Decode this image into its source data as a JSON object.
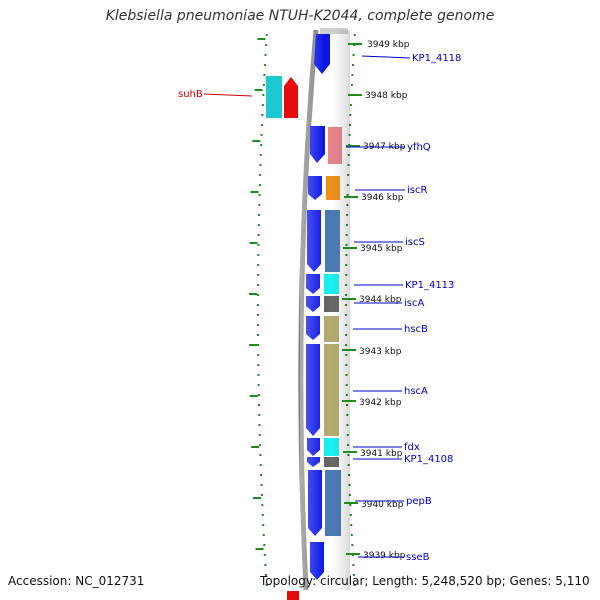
{
  "title": "Klebsiella pneumoniae NTUH-K2044, complete genome",
  "footer": {
    "accession": "Accession: NC_012731",
    "topology": "Topology: circular; Length: 5,248,520 bp; Genes: 5,110"
  },
  "kbp_labels": [
    "3949 kbp",
    "3948 kbp",
    "3947 kbp",
    "3946 kbp",
    "3945 kbp",
    "3944 kbp",
    "3943 kbp",
    "3942 kbp",
    "3941 kbp",
    "3940 kbp",
    "3939 kbp"
  ],
  "genes": [
    {
      "name": "KP1_4118",
      "color": "#0000cc"
    },
    {
      "name": "suhB",
      "color": "#cc0000"
    },
    {
      "name": "yfhQ",
      "color": "#0000cc"
    },
    {
      "name": "iscR",
      "color": "#0000cc"
    },
    {
      "name": "iscS",
      "color": "#0000cc"
    },
    {
      "name": "KP1_4113",
      "color": "#0000cc"
    },
    {
      "name": "iscA",
      "color": "#0000cc"
    },
    {
      "name": "hscB",
      "color": "#0000cc"
    },
    {
      "name": "hscA",
      "color": "#0000cc"
    },
    {
      "name": "fdx",
      "color": "#0000cc"
    },
    {
      "name": "KP1_4108",
      "color": "#0000cc"
    },
    {
      "name": "pepB",
      "color": "#0000cc"
    },
    {
      "name": "sseB",
      "color": "#0000cc"
    }
  ],
  "colors": {
    "cds_blue": "#0a14e6",
    "suhB_cyan": "#1ec8d2",
    "suhB_red": "#e60a0a",
    "yfhQ_pink": "#e8808a",
    "iscR_orange": "#f08c14",
    "steel_blue": "#4678b4",
    "cyan": "#14f0f0",
    "grey": "#646464",
    "khaki": "#b4aa6e",
    "tick_green": "#1e8c1e",
    "backbone": "#808080"
  }
}
